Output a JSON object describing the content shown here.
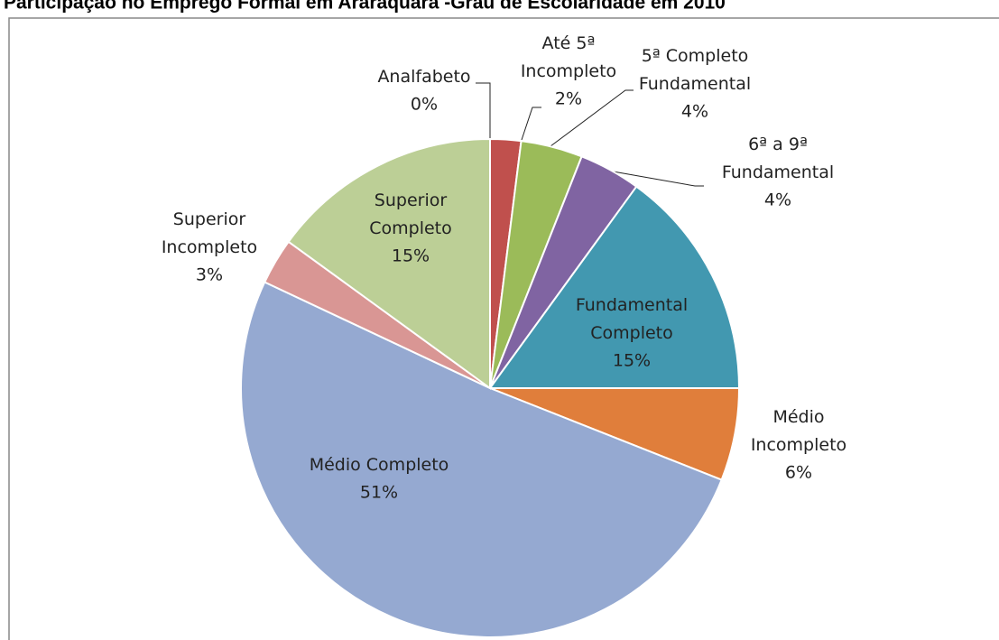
{
  "chart_data": {
    "type": "pie",
    "title": "Participação no Emprego Formal em Araraquara -Grau de Escolaridade em 2010",
    "categories": [
      "Analfabeto",
      "Até 5ª Incompleto",
      "5ª Completo Fundamental",
      "6ª a 9ª Fundamental",
      "Fundamental Completo",
      "Médio Incompleto",
      "Médio Completo",
      "Superior Incompleto",
      "Superior Completo"
    ],
    "values": [
      0,
      2,
      4,
      4,
      15,
      6,
      51,
      3,
      15
    ],
    "value_labels": [
      "0%",
      "2%",
      "4%",
      "4%",
      "15%",
      "6%",
      "51%",
      "3%",
      "15%"
    ],
    "colors": [
      "#f2f2f2",
      "#c0504d",
      "#9bbb59",
      "#8064a2",
      "#4298b0",
      "#e07e3b",
      "#95a9d1",
      "#d99694",
      "#bccf96"
    ]
  }
}
